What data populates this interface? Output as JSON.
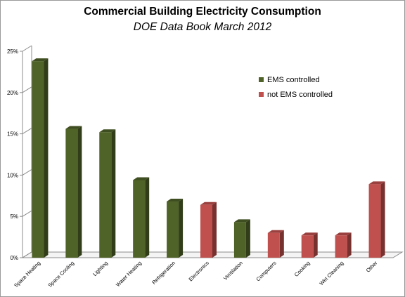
{
  "chart_data": {
    "type": "bar",
    "title": "Commercial Building Electricity Consumption",
    "subtitle": "DOE Data Book March 2012",
    "categories": [
      "Space Heating",
      "Space Cooling",
      "Lighting",
      "Water Heating",
      "Refrigeration",
      "Electronics",
      "Ventilation",
      "Computers",
      "Cooking",
      "Wet Cleaning",
      "Other"
    ],
    "values": [
      23.8,
      15.6,
      15.2,
      9.4,
      6.8,
      6.4,
      4.3,
      3.0,
      2.7,
      2.7,
      8.9
    ],
    "groups": [
      "EMS controlled",
      "EMS controlled",
      "EMS controlled",
      "EMS controlled",
      "EMS controlled",
      "not EMS controlled",
      "EMS controlled",
      "not EMS controlled",
      "not EMS controlled",
      "not EMS controlled",
      "not EMS controlled"
    ],
    "legend": [
      {
        "name": "EMS controlled",
        "color": "#4f6228"
      },
      {
        "name": "not EMS controlled",
        "color": "#c0504d"
      }
    ],
    "y_ticks": [
      "0%",
      "5%",
      "10%",
      "15%",
      "20%",
      "25%"
    ],
    "y_tick_values": [
      0,
      5,
      10,
      15,
      20,
      25
    ],
    "ylim": [
      0,
      25
    ],
    "xlabel": "",
    "ylabel": "",
    "grid": false,
    "legend_position": "right"
  }
}
